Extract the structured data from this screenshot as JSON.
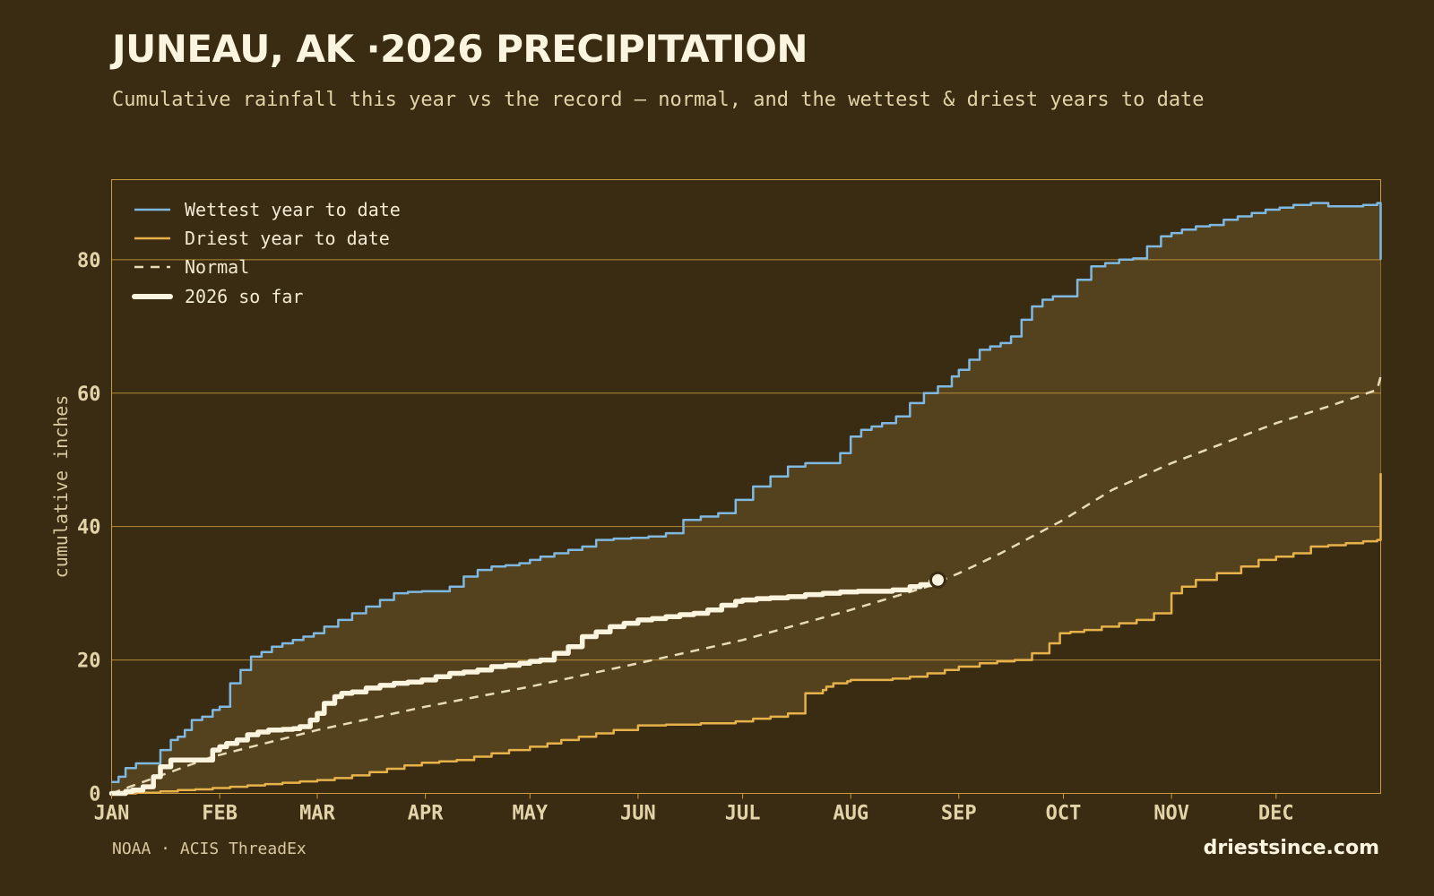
{
  "header": {
    "title": "JUNEAU, AK ·2026 PRECIPITATION",
    "subtitle": "Cumulative rainfall this year vs the record — normal, and the wettest & driest years to date"
  },
  "footer": {
    "source": "NOAA · ACIS ThreadEx",
    "brand": "driestsince.com"
  },
  "colors": {
    "background": "#3a2c13",
    "band_fill": "#54421f",
    "grid": "#c99a3e",
    "wettest": "#7fb8e0",
    "driest": "#e8b24a",
    "normal": "#e8dcb8",
    "current": "#fbf4df"
  },
  "chart_data": {
    "type": "line",
    "title": "JUNEAU, AK ·2026 PRECIPITATION",
    "xlabel": "",
    "ylabel": "cumulative inches",
    "xlim": [
      1,
      365
    ],
    "ylim": [
      0,
      92
    ],
    "yticks": [
      0,
      20,
      40,
      60,
      80
    ],
    "xticks": [
      {
        "day": 1,
        "label": "JAN"
      },
      {
        "day": 32,
        "label": "FEB"
      },
      {
        "day": 60,
        "label": "MAR"
      },
      {
        "day": 91,
        "label": "APR"
      },
      {
        "day": 121,
        "label": "MAY"
      },
      {
        "day": 152,
        "label": "JUN"
      },
      {
        "day": 182,
        "label": "JUL"
      },
      {
        "day": 213,
        "label": "AUG"
      },
      {
        "day": 244,
        "label": "SEP"
      },
      {
        "day": 274,
        "label": "OCT"
      },
      {
        "day": 305,
        "label": "NOV"
      },
      {
        "day": 335,
        "label": "DEC"
      }
    ],
    "grid": true,
    "legend": "top-left",
    "series": [
      {
        "name": "Wettest year to date",
        "key": "wettest",
        "x": [
          1,
          3,
          5,
          8,
          12,
          15,
          18,
          20,
          22,
          24,
          27,
          30,
          32,
          35,
          38,
          41,
          44,
          47,
          50,
          53,
          56,
          59,
          62,
          66,
          70,
          74,
          78,
          82,
          86,
          90,
          94,
          98,
          102,
          106,
          110,
          114,
          118,
          121,
          124,
          128,
          132,
          136,
          140,
          145,
          150,
          155,
          160,
          165,
          170,
          175,
          180,
          185,
          190,
          195,
          200,
          205,
          210,
          213,
          216,
          219,
          222,
          226,
          230,
          234,
          238,
          242,
          244,
          247,
          250,
          253,
          256,
          259,
          262,
          265,
          268,
          271,
          274,
          278,
          282,
          286,
          290,
          294,
          298,
          302,
          305,
          308,
          312,
          316,
          320,
          324,
          328,
          332,
          336,
          340,
          345,
          350,
          355,
          360,
          364,
          365
        ],
        "values": [
          1.7,
          2.5,
          3.8,
          4.5,
          4.5,
          6.5,
          8.0,
          8.5,
          9.5,
          11.0,
          11.5,
          12.5,
          13.0,
          16.5,
          18.5,
          20.5,
          21.2,
          22.0,
          22.5,
          23.0,
          23.5,
          24.0,
          25.0,
          26.0,
          27.0,
          28.0,
          29.0,
          30.0,
          30.2,
          30.3,
          30.3,
          31.0,
          32.5,
          33.5,
          34.0,
          34.2,
          34.5,
          35.0,
          35.5,
          36.0,
          36.5,
          37.0,
          38.0,
          38.2,
          38.3,
          38.5,
          39.0,
          41.0,
          41.5,
          42.0,
          44.0,
          46.0,
          47.5,
          49.0,
          49.5,
          49.5,
          51.0,
          53.5,
          54.5,
          55.0,
          55.5,
          56.5,
          58.5,
          60.0,
          61.0,
          62.5,
          63.5,
          65.0,
          66.5,
          67.0,
          67.5,
          68.5,
          71.0,
          73.0,
          74.0,
          74.5,
          74.5,
          77.0,
          79.0,
          79.5,
          80.0,
          80.2,
          82.0,
          83.5,
          84.0,
          84.5,
          85.0,
          85.2,
          86.0,
          86.5,
          87.0,
          87.5,
          87.8,
          88.2,
          88.5,
          88.0,
          88.0,
          88.2,
          88.5,
          80.0
        ],
        "color": "#7fb8e0"
      },
      {
        "name": "Driest year to date",
        "key": "driest",
        "x": [
          1,
          8,
          15,
          20,
          25,
          30,
          35,
          40,
          45,
          50,
          55,
          60,
          65,
          70,
          75,
          80,
          85,
          90,
          95,
          100,
          105,
          110,
          115,
          121,
          126,
          130,
          135,
          140,
          145,
          152,
          160,
          170,
          180,
          185,
          190,
          195,
          200,
          205,
          206,
          208,
          212,
          213,
          220,
          225,
          230,
          235,
          240,
          244,
          250,
          255,
          260,
          265,
          270,
          273,
          276,
          280,
          285,
          290,
          295,
          300,
          305,
          308,
          312,
          318,
          325,
          330,
          335,
          340,
          345,
          350,
          355,
          360,
          364,
          365
        ],
        "values": [
          0.0,
          0.1,
          0.3,
          0.5,
          0.6,
          0.8,
          1.0,
          1.2,
          1.4,
          1.6,
          1.8,
          2.0,
          2.3,
          2.7,
          3.2,
          3.7,
          4.2,
          4.6,
          4.8,
          5.0,
          5.5,
          6.0,
          6.5,
          7.0,
          7.5,
          8.0,
          8.5,
          9.0,
          9.5,
          10.2,
          10.3,
          10.5,
          10.8,
          11.2,
          11.5,
          12.0,
          15.0,
          15.5,
          16.0,
          16.5,
          16.8,
          17.0,
          17.0,
          17.2,
          17.5,
          18.0,
          18.5,
          19.0,
          19.5,
          19.8,
          20.0,
          21.0,
          22.5,
          24.0,
          24.2,
          24.5,
          25.0,
          25.5,
          26.0,
          27.0,
          30.0,
          31.0,
          32.0,
          33.0,
          34.0,
          35.0,
          35.5,
          36.0,
          37.0,
          37.2,
          37.5,
          37.8,
          38.0,
          48.0
        ],
        "color": "#e8b24a"
      },
      {
        "name": "Normal",
        "key": "normal",
        "x": [
          1,
          30,
          60,
          91,
          121,
          152,
          182,
          213,
          235,
          244,
          256,
          274,
          288,
          305,
          320,
          335,
          350,
          364,
          365
        ],
        "values": [
          0.0,
          5.5,
          9.5,
          13.0,
          16.0,
          19.5,
          23.0,
          27.5,
          31.0,
          33.0,
          36.0,
          41.0,
          45.5,
          49.5,
          52.5,
          55.5,
          58.0,
          60.5,
          62.5
        ],
        "color": "#e8dcb8"
      },
      {
        "name": "2026 so far",
        "key": "current",
        "x": [
          1,
          5,
          7,
          10,
          13,
          15,
          18,
          22,
          25,
          28,
          30,
          32,
          34,
          37,
          40,
          43,
          46,
          50,
          53,
          55,
          58,
          60,
          62,
          65,
          67,
          70,
          74,
          78,
          82,
          86,
          90,
          94,
          98,
          102,
          106,
          110,
          114,
          118,
          121,
          124,
          128,
          132,
          136,
          140,
          144,
          148,
          152,
          156,
          160,
          164,
          168,
          172,
          176,
          180,
          182,
          186,
          190,
          195,
          200,
          205,
          210,
          215,
          220,
          225,
          230,
          233,
          236,
          238
        ],
        "values": [
          0.0,
          0.3,
          0.5,
          1.0,
          2.5,
          4.0,
          5.0,
          5.0,
          5.0,
          5.0,
          6.5,
          7.0,
          7.5,
          8.0,
          8.8,
          9.2,
          9.5,
          9.6,
          9.7,
          10.0,
          11.0,
          12.0,
          13.5,
          14.5,
          15.0,
          15.2,
          15.8,
          16.2,
          16.5,
          16.7,
          17.0,
          17.5,
          18.0,
          18.2,
          18.5,
          19.0,
          19.2,
          19.5,
          19.8,
          20.0,
          21.0,
          22.0,
          23.5,
          24.2,
          25.0,
          25.5,
          26.0,
          26.2,
          26.5,
          26.8,
          27.0,
          27.5,
          28.2,
          28.8,
          29.0,
          29.2,
          29.3,
          29.5,
          29.8,
          30.0,
          30.2,
          30.3,
          30.3,
          30.5,
          31.0,
          31.3,
          31.8,
          32.0
        ],
        "color": "#fbf4df",
        "endpoint": {
          "x": 238,
          "value": 32.0
        }
      }
    ]
  }
}
